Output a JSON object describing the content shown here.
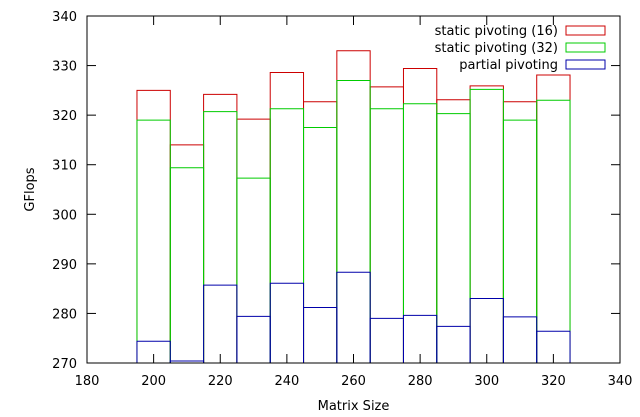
{
  "chart_data": {
    "type": "bar",
    "style": "overlapping outlined histogram steps",
    "xlabel": "Matrix Size",
    "ylabel": "GFlops",
    "xlim": [
      180,
      340
    ],
    "ylim": [
      270,
      340
    ],
    "x_ticks": [
      "180",
      "200",
      "220",
      "240",
      "260",
      "280",
      "300",
      "320",
      "340"
    ],
    "y_ticks": [
      "270",
      "280",
      "290",
      "300",
      "310",
      "320",
      "330",
      "340"
    ],
    "grid": false,
    "legend_position": "top-right",
    "x": [
      200,
      210,
      220,
      230,
      240,
      250,
      260,
      270,
      280,
      290,
      300,
      310,
      320
    ],
    "series": [
      {
        "name": "static pivoting (16)",
        "color": "#cc0000",
        "values": [
          325.0,
          314.0,
          324.2,
          319.2,
          328.6,
          322.7,
          333.0,
          325.7,
          329.4,
          323.1,
          325.9,
          322.7,
          328.1
        ]
      },
      {
        "name": "static pivoting (32)",
        "color": "#00cc00",
        "values": [
          319.0,
          309.4,
          320.7,
          307.3,
          321.3,
          317.5,
          327.0,
          321.3,
          322.3,
          320.3,
          325.2,
          319.0,
          323.0
        ]
      },
      {
        "name": "partial pivoting",
        "color": "#0000aa",
        "values": [
          274.4,
          270.4,
          285.7,
          279.4,
          286.1,
          281.2,
          288.3,
          279.0,
          279.6,
          277.4,
          283.0,
          279.3,
          276.4
        ]
      }
    ]
  }
}
